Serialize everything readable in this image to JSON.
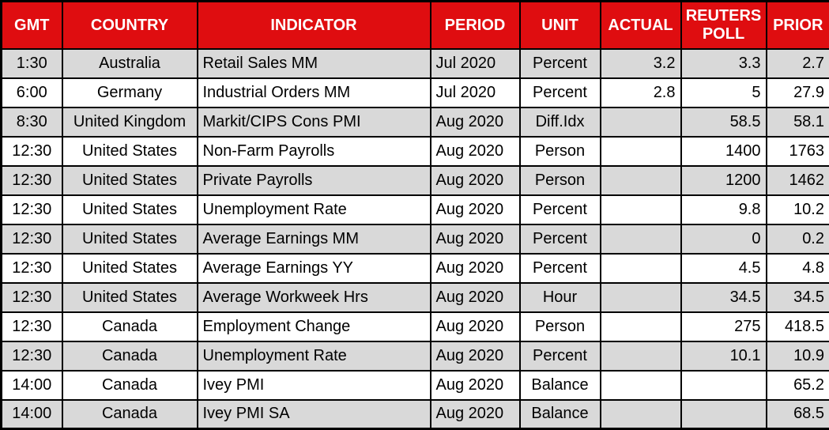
{
  "colors": {
    "header_bg": "#df0d10",
    "header_text": "#ffffff",
    "row_stripe": "#d9d9d9",
    "row_plain": "#ffffff",
    "grid": "#000000",
    "cell_text": "#000000"
  },
  "table": {
    "headers": [
      "GMT",
      "COUNTRY",
      "INDICATOR",
      "PERIOD",
      "UNIT",
      "ACTUAL",
      "REUTERS\nPOLL",
      "PRIOR"
    ]
  },
  "chart_data": {
    "type": "table",
    "columns": [
      "GMT",
      "COUNTRY",
      "INDICATOR",
      "PERIOD",
      "UNIT",
      "ACTUAL",
      "REUTERS POLL",
      "PRIOR"
    ],
    "rows": [
      [
        "1:30",
        "Australia",
        "Retail Sales MM",
        "Jul 2020",
        "Percent",
        "3.2",
        "3.3",
        "2.7"
      ],
      [
        "6:00",
        "Germany",
        "Industrial Orders MM",
        "Jul 2020",
        "Percent",
        "2.8",
        "5",
        "27.9"
      ],
      [
        "8:30",
        "United Kingdom",
        "Markit/CIPS Cons PMI",
        "Aug 2020",
        "Diff.Idx",
        "",
        "58.5",
        "58.1"
      ],
      [
        "12:30",
        "United States",
        "Non-Farm Payrolls",
        "Aug 2020",
        "Person",
        "",
        "1400",
        "1763"
      ],
      [
        "12:30",
        "United States",
        "Private Payrolls",
        "Aug 2020",
        "Person",
        "",
        "1200",
        "1462"
      ],
      [
        "12:30",
        "United States",
        "Unemployment Rate",
        "Aug 2020",
        "Percent",
        "",
        "9.8",
        "10.2"
      ],
      [
        "12:30",
        "United States",
        "Average Earnings MM",
        "Aug 2020",
        "Percent",
        "",
        "0",
        "0.2"
      ],
      [
        "12:30",
        "United States",
        "Average Earnings YY",
        "Aug 2020",
        "Percent",
        "",
        "4.5",
        "4.8"
      ],
      [
        "12:30",
        "United States",
        "Average Workweek Hrs",
        "Aug 2020",
        "Hour",
        "",
        "34.5",
        "34.5"
      ],
      [
        "12:30",
        "Canada",
        "Employment Change",
        "Aug 2020",
        "Person",
        "",
        "275",
        "418.5"
      ],
      [
        "12:30",
        "Canada",
        "Unemployment Rate",
        "Aug 2020",
        "Percent",
        "",
        "10.1",
        "10.9"
      ],
      [
        "14:00",
        "Canada",
        "Ivey PMI",
        "Aug 2020",
        "Balance",
        "",
        "",
        "65.2"
      ],
      [
        "14:00",
        "Canada",
        "Ivey PMI SA",
        "Aug 2020",
        "Balance",
        "",
        "",
        "68.5"
      ]
    ]
  }
}
